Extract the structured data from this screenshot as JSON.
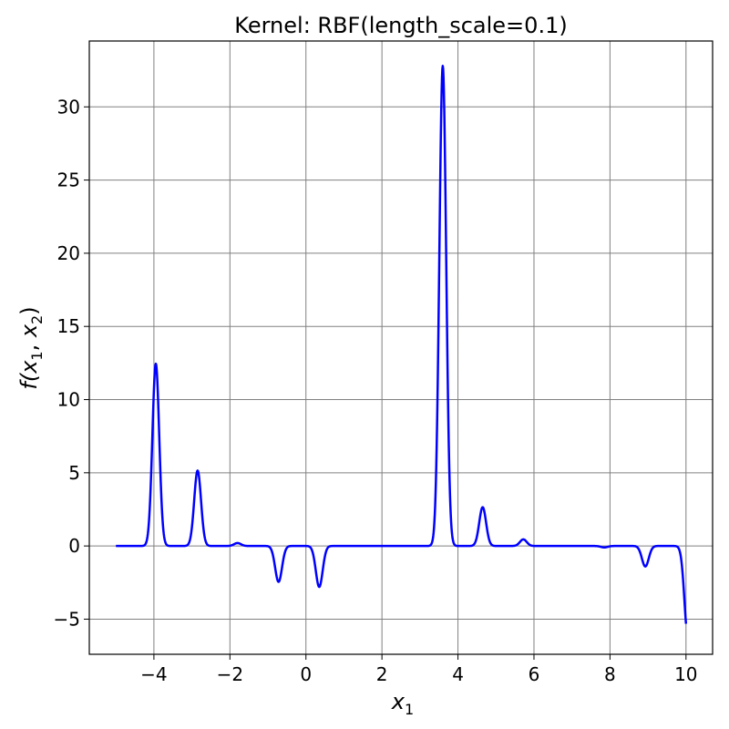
{
  "chart_data": {
    "type": "line",
    "title": "Kernel: RBF(length_scale=0.1)",
    "xlabel": "x",
    "xlabel_sub": "1",
    "ylabel": {
      "f": "f(",
      "x1": "x",
      "sub1": "1",
      "comma": ", ",
      "x2": "x",
      "sub2": "2",
      "close": ")"
    },
    "xlim": [
      -5.7,
      10.7
    ],
    "ylim": [
      -7.4,
      34.5
    ],
    "x_ticks": [
      {
        "value": -4,
        "label": "−4"
      },
      {
        "value": -2,
        "label": "−2"
      },
      {
        "value": 0,
        "label": "0"
      },
      {
        "value": 2,
        "label": "2"
      },
      {
        "value": 4,
        "label": "4"
      },
      {
        "value": 6,
        "label": "6"
      },
      {
        "value": 8,
        "label": "8"
      },
      {
        "value": 10,
        "label": "10"
      }
    ],
    "y_ticks": [
      {
        "value": -5,
        "label": "−5"
      },
      {
        "value": 0,
        "label": "0"
      },
      {
        "value": 5,
        "label": "5"
      },
      {
        "value": 10,
        "label": "10"
      },
      {
        "value": 15,
        "label": "15"
      },
      {
        "value": 20,
        "label": "20"
      },
      {
        "value": 25,
        "label": "25"
      },
      {
        "value": 30,
        "label": "30"
      }
    ],
    "grid": true,
    "colors": {
      "line": "#0000ff",
      "grid": "#808080",
      "axes": "#000000"
    },
    "series": [
      {
        "x_range": [
          -5,
          10
        ],
        "bumps": [
          {
            "center": -3.95,
            "height": 12.45,
            "width": 0.09
          },
          {
            "center": -2.85,
            "height": 5.15,
            "width": 0.09
          },
          {
            "center": -1.8,
            "height": 0.2,
            "width": 0.09
          },
          {
            "center": -0.72,
            "height": -2.45,
            "width": 0.09
          },
          {
            "center": 0.35,
            "height": -2.8,
            "width": 0.09
          },
          {
            "center": 3.6,
            "height": 32.8,
            "width": 0.09
          },
          {
            "center": 4.65,
            "height": 2.65,
            "width": 0.09
          },
          {
            "center": 5.72,
            "height": 0.45,
            "width": 0.09
          },
          {
            "center": 7.85,
            "height": -0.1,
            "width": 0.09
          },
          {
            "center": 8.93,
            "height": -1.4,
            "width": 0.09
          },
          {
            "center": 10.05,
            "height": -6.2,
            "width": 0.09
          }
        ]
      }
    ]
  }
}
